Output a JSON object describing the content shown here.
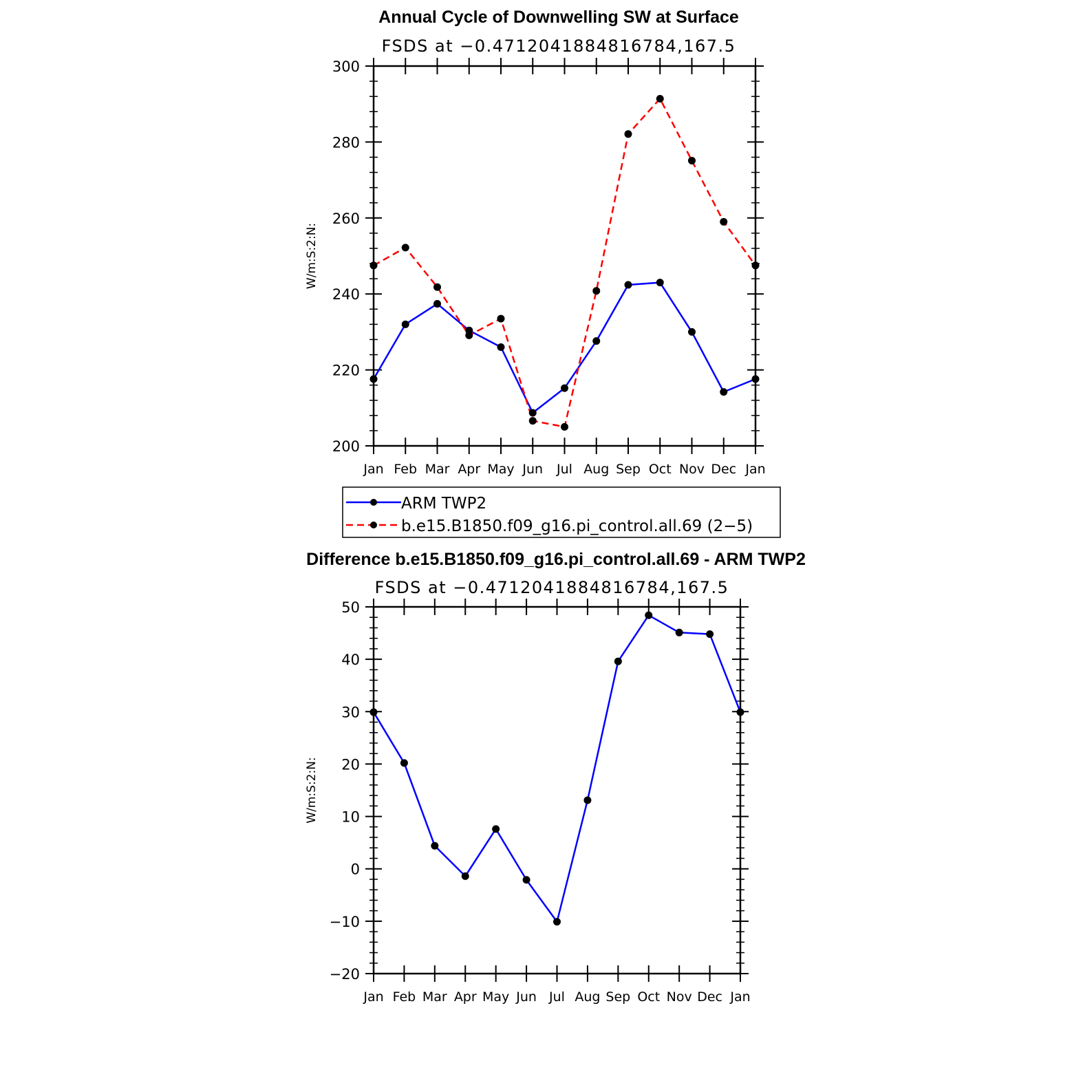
{
  "chart_data": [
    {
      "type": "line",
      "title": "Annual Cycle of Downwelling SW at Surface",
      "subtitle": "FSDS at −0.4712041884816784,167.5",
      "ylabel": "W/m:S:2:N:",
      "ylim": [
        200,
        300
      ],
      "yticks": [
        200,
        220,
        240,
        260,
        280,
        300
      ],
      "categories": [
        "Jan",
        "Feb",
        "Mar",
        "Apr",
        "May",
        "Jun",
        "Jul",
        "Aug",
        "Sep",
        "Oct",
        "Nov",
        "Dec",
        "Jan"
      ],
      "series": [
        {
          "name": "ARM TWP2",
          "color": "#0000ff",
          "dash": "solid",
          "values": [
            217.6,
            232.0,
            237.4,
            230.4,
            226.0,
            208.7,
            215.2,
            227.6,
            242.4,
            243.0,
            230.0,
            214.2,
            217.6
          ]
        },
        {
          "name": "b.e15.B1850.f09_g16.pi_control.all.69 (2−5)",
          "color": "#ff0000",
          "dash": "dashed",
          "values": [
            247.5,
            252.2,
            241.8,
            229.1,
            233.5,
            206.6,
            205.0,
            240.8,
            282.1,
            291.4,
            275.1,
            259.0,
            247.5
          ]
        }
      ],
      "legend": "below"
    },
    {
      "type": "line",
      "title": "Difference b.e15.B1850.f09_g16.pi_control.all.69 - ARM TWP2",
      "subtitle": "FSDS at −0.4712041884816784,167.5",
      "ylabel": "W/m:S:2:N:",
      "ylim": [
        -20,
        50
      ],
      "yticks": [
        -20,
        -10,
        0,
        10,
        20,
        30,
        40,
        50
      ],
      "ytick_labels": [
        "−20",
        "−10",
        "0",
        "10",
        "20",
        "30",
        "40",
        "50"
      ],
      "categories": [
        "Jan",
        "Feb",
        "Mar",
        "Apr",
        "May",
        "Jun",
        "Jul",
        "Aug",
        "Sep",
        "Oct",
        "Nov",
        "Dec",
        "Jan"
      ],
      "series": [
        {
          "color": "#0000ff",
          "dash": "solid",
          "values": [
            29.9,
            20.2,
            4.4,
            -1.4,
            7.6,
            -2.1,
            -10.1,
            13.1,
            39.6,
            48.4,
            45.1,
            44.8,
            29.9
          ]
        }
      ]
    }
  ]
}
